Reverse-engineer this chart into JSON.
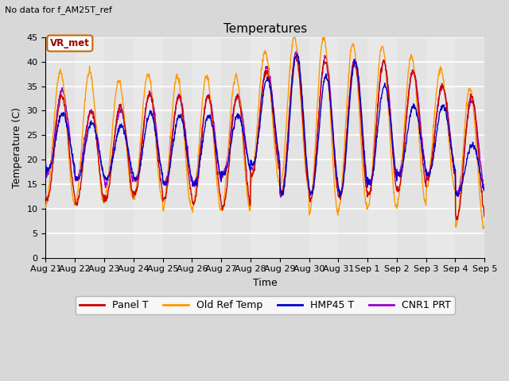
{
  "title": "Temperatures",
  "xlabel": "Time",
  "ylabel": "Temperature (C)",
  "note": "No data for f_AM25T_ref",
  "vr_met_label": "VR_met",
  "ylim": [
    0,
    45
  ],
  "yticks": [
    0,
    5,
    10,
    15,
    20,
    25,
    30,
    35,
    40,
    45
  ],
  "num_days": 15,
  "x_labels": [
    "Aug 21",
    "Aug 22",
    "Aug 23",
    "Aug 24",
    "Aug 25",
    "Aug 26",
    "Aug 27",
    "Aug 28",
    "Aug 29",
    "Aug 30",
    "Aug 31",
    "Sep 1",
    "Sep 2",
    "Sep 3",
    "Sep 4",
    "Sep 5"
  ],
  "series_colors": [
    "#cc0000",
    "#ff9900",
    "#0000cc",
    "#9900cc"
  ],
  "series_labels": [
    "Panel T",
    "Old Ref Temp",
    "HMP45 T",
    "CNR1 PRT"
  ],
  "background_color": "#d8d8d8",
  "plot_bg_color": "#e8e8e8",
  "grid_color": "#ffffff",
  "figsize": [
    6.4,
    4.8
  ],
  "dpi": 100
}
